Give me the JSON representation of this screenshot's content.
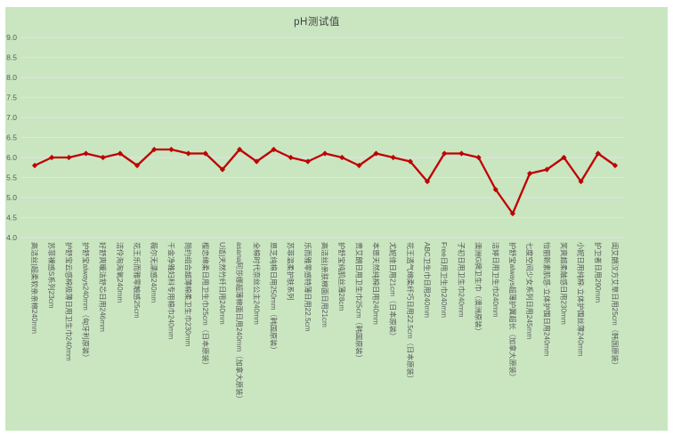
{
  "chart_data": {
    "type": "line",
    "title": "pH测试值",
    "series_name": "pH测试值",
    "categories": [
      "高洁丝|超柔软亲亲棉240mm",
      "苏菲裸感S系列23cm",
      "护舒宝云感棉极薄日用卫生巾240mm",
      "护舒宝always240mm（匈牙利原装）",
      "好舒爽暖洁舒芯日用246mm",
      "洁伶淘淘氧240mm",
      "花王乐而雅零触感25cm",
      "薇尔无漂感240mm",
      "千金净雅妇科专用棉巾240mm",
      "简约组合超薄棉柔卫生巾230mm",
      "樱恋绵柔日用卫生巾25cm（日本原装）",
      "U适|天然竹纤日用240mm",
      "asana阿莎娜超薄棉面日用240mm（加拿大原装）",
      "全棉时代奈丝公主240mm",
      "恩芝纯棉日用250mm（韩国原装）",
      "苏菲温柔护肤系列",
      "乐而雅零感特薄日用22.5cm",
      "高洁丝|亲肤棉面日用21cm",
      "护舒宝纯肌丝薄28cm",
      "贵艾朗日用卫生巾25cm（韩国原装）",
      "本恩天然纯棉日用240mm",
      "尤妮佳日用21cm（日本原装）",
      "花王透气绵柔纤巧日用22.5cm（日本原装）",
      "ABC卫生巾日用240mm",
      "Free日用卫生巾240mm",
      "子初日用卫生巾240mm",
      "澳洲G牌卫生巾（澳洲原装）",
      "洁婷日用卫生巾240mm",
      "护舒宝always超薄护翼超长（加拿大原装）",
      "七度空间少女系列日用245mm",
      "怡丽新素肌感·立体护围日用240mm",
      "笑爽超柔触感日用230mm",
      "小妮日用纯棉·立体护围丝薄240mm",
      "护卫者日用290mm",
      "闺艾朗汉方艾草日用25cm（韩国原装）"
    ],
    "values": [
      5.8,
      6.0,
      6.0,
      6.1,
      6.0,
      6.1,
      5.8,
      6.2,
      6.2,
      6.1,
      6.1,
      5.7,
      6.2,
      5.9,
      6.2,
      6.0,
      5.9,
      6.1,
      6.0,
      5.8,
      6.1,
      6.0,
      5.9,
      5.4,
      6.1,
      6.1,
      6.0,
      5.2,
      4.6,
      5.6,
      5.7,
      6.0,
      5.4,
      6.1,
      5.8
    ],
    "xlabel": "",
    "ylabel": "",
    "ylim": [
      4.0,
      9.0
    ],
    "y_tick_step": 0.5,
    "grid": true,
    "legend_position": "none",
    "colors": {
      "line": "#c00000",
      "marker": "#c00000",
      "plot_background": "#c9e6c1",
      "gridline": "#e9dee7",
      "axis_text": "#595959",
      "title_text": "#404040"
    },
    "marker_shape": "diamond"
  }
}
